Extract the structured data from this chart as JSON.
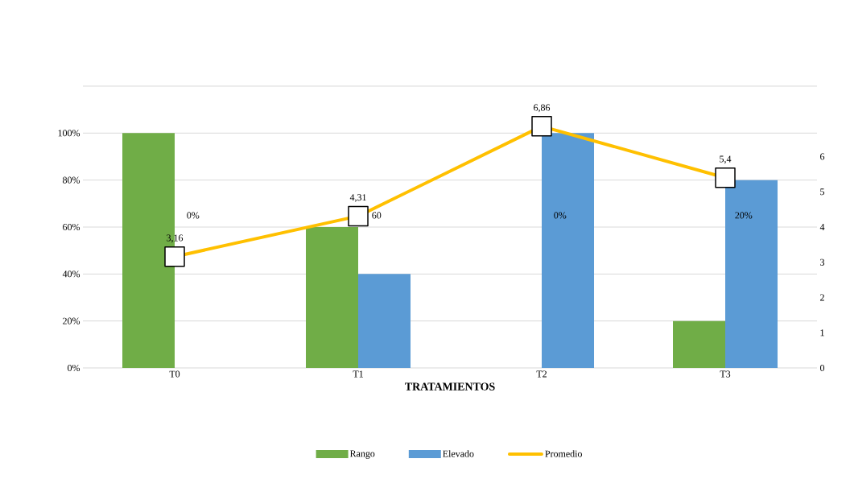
{
  "chart_data": {
    "type": "bar",
    "xlabel": "TRATAMIENTOS",
    "categories": [
      "T0",
      "T1",
      "T2",
      "T3"
    ],
    "series": [
      {
        "name": "Rango",
        "color": "#70ad47",
        "values": [
          100,
          60,
          0,
          20
        ]
      },
      {
        "name": "Elevado",
        "color": "#5b9bd5",
        "values": [
          0,
          40,
          100,
          80
        ]
      },
      {
        "name": "Promedio",
        "type": "line",
        "axis": "y2",
        "color": "#ffc000",
        "marker": "square",
        "values": [
          3.16,
          4.31,
          6.86,
          5.4
        ],
        "value_labels": [
          "3,16",
          "4,31",
          "6,86",
          "5,4"
        ]
      }
    ],
    "ylim": [
      0,
      120
    ],
    "yticks": [
      {
        "value": 0,
        "label": "0%"
      },
      {
        "value": 20,
        "label": "20%"
      },
      {
        "value": 40,
        "label": "40%"
      },
      {
        "value": 60,
        "label": "60%"
      },
      {
        "value": 80,
        "label": "80%"
      },
      {
        "value": 100,
        "label": "100%"
      },
      {
        "value": 120,
        "label": null
      }
    ],
    "y2lim": [
      0,
      8
    ],
    "y2ticks": [
      0,
      1,
      2,
      3,
      4,
      5,
      6
    ],
    "annotations": [
      "0%",
      "60",
      "0%",
      "20%"
    ],
    "grid": "y",
    "legend": "bottom"
  }
}
